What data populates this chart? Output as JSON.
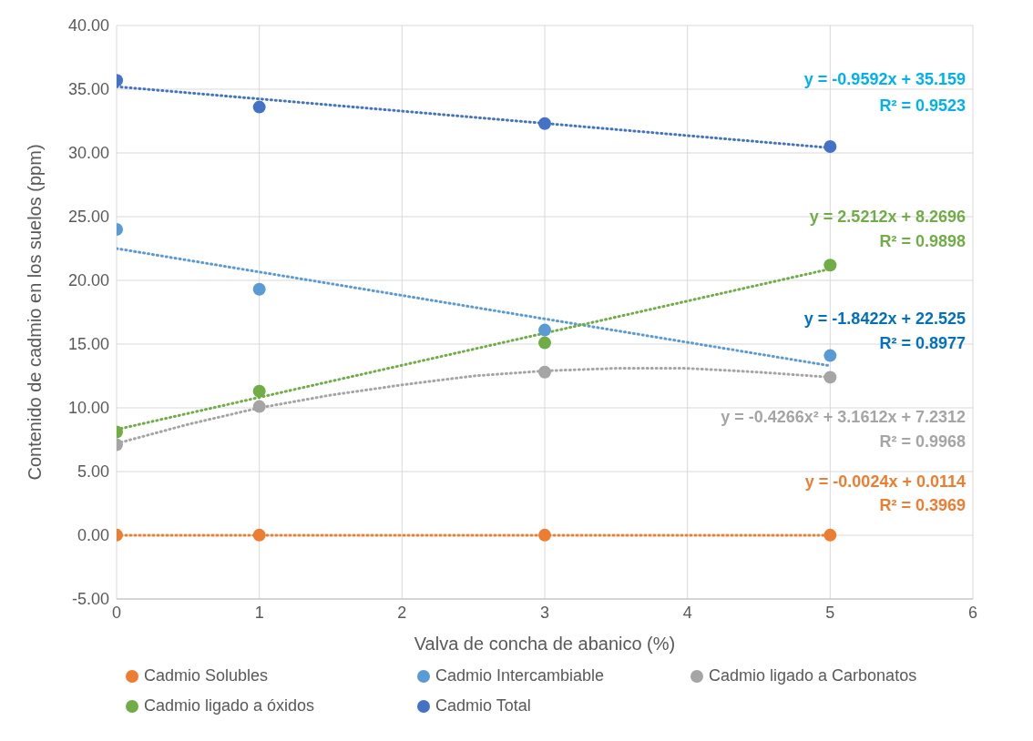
{
  "chart_data": {
    "type": "scatter",
    "xlabel": "Valva de concha de abanico (%)",
    "ylabel": "Contenido de cadmio en los suelos (ppm)",
    "x": [
      0,
      1,
      3,
      5
    ],
    "xlim": [
      0,
      6
    ],
    "xticks": [
      0,
      1,
      2,
      3,
      4,
      5,
      6
    ],
    "ylim": [
      -5,
      40
    ],
    "yticks": [
      {
        "value": -5,
        "label": "-5.00"
      },
      {
        "value": 0,
        "label": "0.00"
      },
      {
        "value": 5,
        "label": "5.00"
      },
      {
        "value": 10,
        "label": "10.00"
      },
      {
        "value": 15,
        "label": "15.00"
      },
      {
        "value": 20,
        "label": "20.00"
      },
      {
        "value": 25,
        "label": "25.00"
      },
      {
        "value": 30,
        "label": "30.00"
      },
      {
        "value": 35,
        "label": "35.00"
      },
      {
        "value": 40,
        "label": "40.00"
      }
    ],
    "grid": true,
    "legend": "bottom",
    "marker": "circle",
    "series": [
      {
        "name": "Cadmio Solubles",
        "color": "#ed7d31",
        "values": [
          0.01,
          0.01,
          0.01,
          0.01
        ]
      },
      {
        "name": "Cadmio Intercambiable",
        "color": "#5b9bd5",
        "values": [
          24.0,
          19.3,
          16.1,
          14.1
        ]
      },
      {
        "name": "Cadmio ligado a Carbonatos",
        "color": "#a5a5a5",
        "values": [
          7.1,
          10.1,
          12.8,
          12.4
        ]
      },
      {
        "name": "Cadmio ligado a óxidos",
        "color": "#70ad47",
        "values": [
          8.1,
          11.3,
          15.1,
          21.2
        ]
      },
      {
        "name": "Cadmio Total",
        "color": "#4472c4",
        "values": [
          35.7,
          33.6,
          32.3,
          30.5
        ]
      },
      {
        "type": "line",
        "line_style": "dotted",
        "marker": "none",
        "color": "#ed7d31",
        "x": [
          0,
          5
        ],
        "values": [
          0,
          0
        ]
      },
      {
        "type": "line",
        "line_style": "dotted",
        "marker": "none",
        "color": "#5b9bd5",
        "x": [
          0,
          5
        ],
        "values": [
          22.5,
          13.3
        ]
      },
      {
        "type": "line",
        "line_style": "dotted",
        "marker": "none",
        "color": "#a5a5a5",
        "x": [
          0,
          0.5,
          1,
          1.5,
          2,
          2.5,
          3,
          3.5,
          4,
          4.5,
          5
        ],
        "values": [
          7.2,
          8.7,
          10.0,
          11.0,
          11.8,
          12.5,
          12.9,
          13.1,
          13.1,
          12.8,
          12.4
        ]
      },
      {
        "type": "line",
        "line_style": "dotted",
        "marker": "none",
        "color": "#70ad47",
        "x": [
          0,
          5
        ],
        "values": [
          8.3,
          20.9
        ]
      },
      {
        "type": "line",
        "line_style": "dotted",
        "marker": "none",
        "color": "#4472c4",
        "x": [
          0,
          5
        ],
        "values": [
          35.2,
          30.4
        ]
      }
    ],
    "annotations": [
      "y = -0.9592x + 35.159",
      "R² = 0.9523",
      "y = 2.5212x + 8.2696",
      "R² = 0.9898",
      "y = -1.8422x + 22.525",
      "R² = 0.8977",
      "y = -0.4266x² + 3.1612x + 7.2312",
      "R² = 0.9968",
      "y = -0.0024x + 0.0114",
      "R² = 0.3969"
    ]
  }
}
